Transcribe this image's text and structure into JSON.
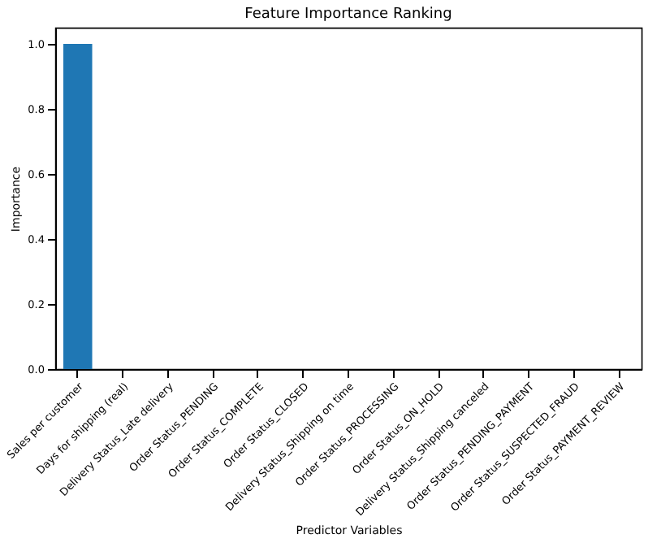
{
  "chart_data": {
    "type": "bar",
    "title": "Feature Importance Ranking",
    "xlabel": "Predictor Variables",
    "ylabel": "Importance",
    "categories": [
      "Sales per customer",
      "Days for shipping (real)",
      "Delivery Status_Late delivery",
      "Order Status_PENDING",
      "Order Status_COMPLETE",
      "Order Status_CLOSED",
      "Delivery Status_Shipping on time",
      "Order Status_PROCESSING",
      "Order Status_ON_HOLD",
      "Delivery Status_Shipping canceled",
      "Order Status_PENDING_PAYMENT",
      "Order Status_SUSPECTED_FRAUD",
      "Order Status_PAYMENT_REVIEW"
    ],
    "values": [
      1.0,
      0,
      0,
      0,
      0,
      0,
      0,
      0,
      0,
      0,
      0,
      0,
      0
    ],
    "color": "#1f77b4",
    "ylim": [
      0,
      1.05
    ],
    "yticks": [
      {
        "value": 0,
        "label": "0.0"
      },
      0.2,
      0.4,
      0.6,
      0.8,
      {
        "value": 1,
        "label": "1.0"
      }
    ],
    "grid": false
  }
}
